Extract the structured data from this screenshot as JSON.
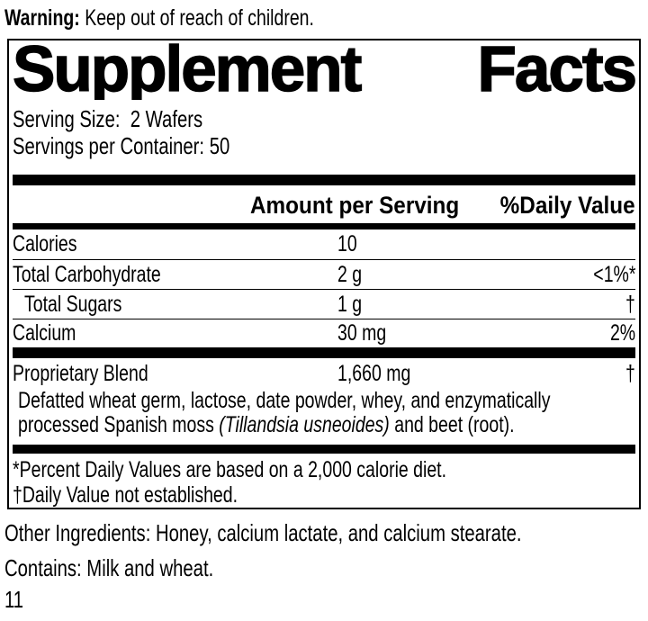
{
  "warning": {
    "label": "Warning:",
    "text": "Keep out of reach of children."
  },
  "panel": {
    "title_word1": "Supplement",
    "title_word2": "Facts",
    "serving_size_label": "Serving Size:",
    "serving_size_value": "2 Wafers",
    "servings_per_container_label": "Servings per Container:",
    "servings_per_container_value": "50",
    "columns": {
      "amount": "Amount per Serving",
      "daily_value": "%Daily Value"
    },
    "rows": [
      {
        "name": "Calories",
        "amount": "10",
        "dv": ""
      },
      {
        "name": "Total Carbohydrate",
        "amount": "2 g",
        "dv": "<1%*"
      },
      {
        "name": "Total Sugars",
        "amount": "1 g",
        "dv": "†"
      },
      {
        "name": "Calcium",
        "amount": "30 mg",
        "dv": "2%"
      }
    ],
    "proprietary": {
      "name": "Proprietary Blend",
      "amount": "1,660 mg",
      "dv": "†",
      "description_line1": "Defatted wheat germ, lactose, date powder, whey, and enzymatically",
      "description_line2_pre": "processed Spanish moss ",
      "description_line2_italic": "(Tillandsia usneoides)",
      "description_line2_post": " and beet (root)."
    },
    "footnotes": [
      "*Percent Daily Values are based on a 2,000 calorie diet.",
      "†Daily Value not established."
    ]
  },
  "other_ingredients": "Other Ingredients: Honey, calcium lactate, and calcium stearate.",
  "contains": "Contains: Milk and wheat.",
  "page_number": "11",
  "colors": {
    "text": "#000000",
    "background": "#ffffff",
    "rule": "#000000"
  }
}
